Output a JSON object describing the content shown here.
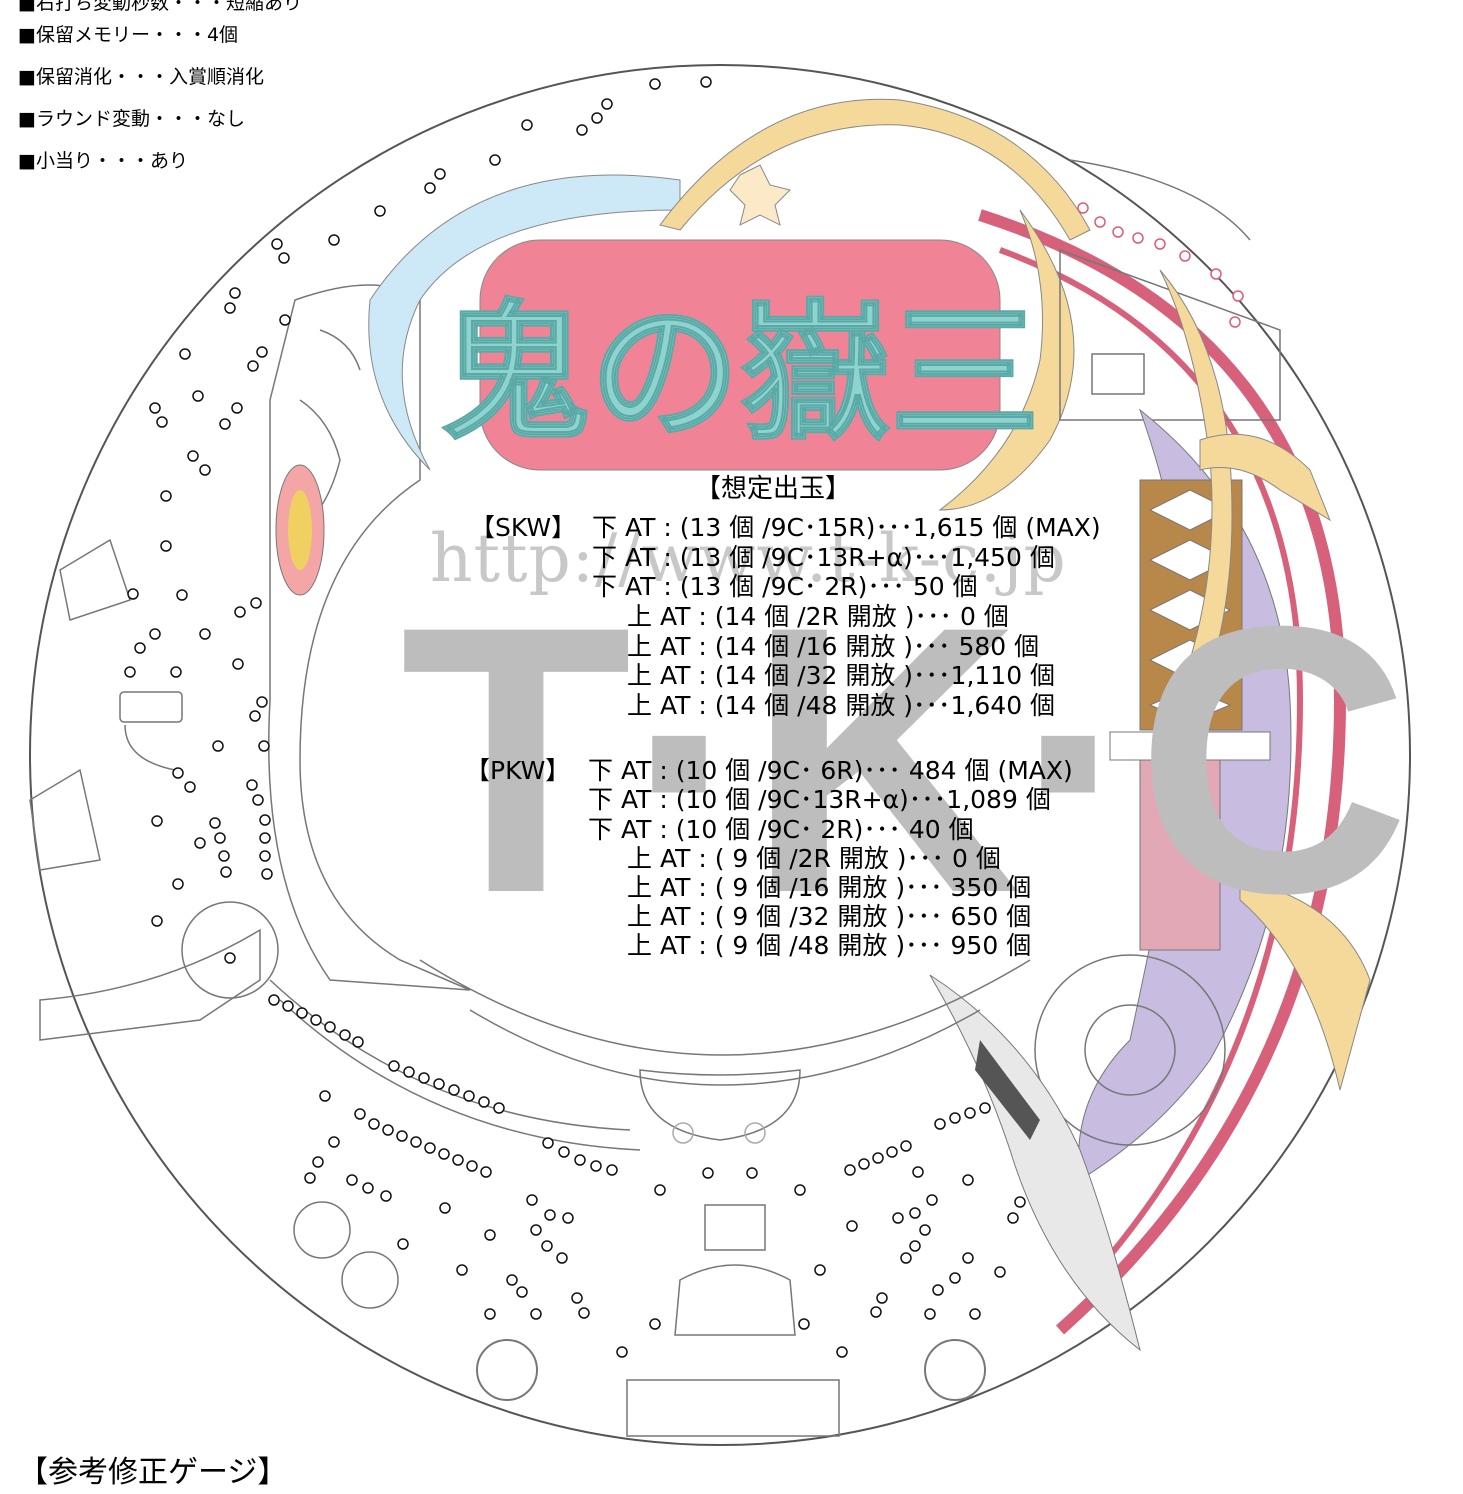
{
  "spec_list": {
    "partial_line": "■右打ち変動秒数・・・短縮あり",
    "items": [
      "■保留メモリー・・・4個",
      "■保留消化・・・入賞順消化",
      "■ラウンド変動・・・なし",
      "■小当り・・・あり"
    ]
  },
  "logo_text": "鬼の嶽三",
  "watermark": {
    "url": "http://www.t-k-c.jp",
    "letters": "T·K·C"
  },
  "outflow": {
    "title": "【想定出玉】",
    "sections": [
      {
        "label": "【SKW】",
        "rows": [
          "下 AT : (13 個 /9C･15R)･･･1,615 個 (MAX)",
          "下 AT : (13 個 /9C･13R+α)･･･1,450 個",
          "下 AT : (13 個 /9C･ 2R)･･･   50 個",
          "上 AT : (14 個 /2R 開放 )･･･    0 個",
          "上 AT : (14 個 /16 開放 )･･･  580 個",
          "上 AT : (14 個 /32 開放 )･･･1,110 個",
          "上 AT : (14 個 /48 開放 )･･･1,640 個"
        ]
      },
      {
        "label": "【PKW】",
        "rows": [
          "下 AT : (10 個 /9C･ 6R)･･･  484 個 (MAX)",
          "下 AT : (10 個 /9C･13R+α)･･･1,089 個",
          "下 AT : (10 個 /9C･ 2R)･･･      40 個",
          "上 AT : ( 9 個 /2R 開放 )･･･    0 個",
          "上 AT : ( 9 個 /16 開放 )･･･  350 個",
          "上 AT : ( 9 個 /32 開放 )･･･  650 個",
          "上 AT : ( 9 個 /48 開放 )･･･  950 個"
        ]
      }
    ]
  },
  "bottom_heading": "【参考修正ゲージ】",
  "colors": {
    "logo_fill": "#8fd3cf",
    "logo_outline": "#f08496",
    "rail_pink": "#d7607a",
    "sword_purple": "#c8bde0",
    "blade_yellow": "#f4d99a",
    "blue_arc": "#cde9f7",
    "sword_gold": "#b8874a"
  }
}
